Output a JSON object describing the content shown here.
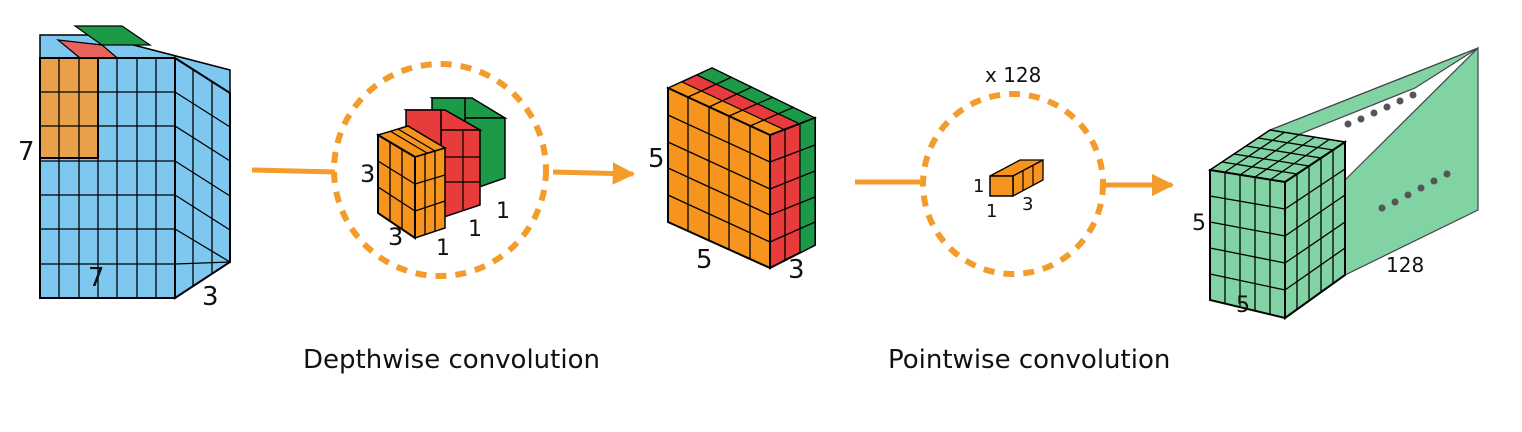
{
  "input_block": {
    "height_label": "7",
    "width_label": "7",
    "depth_label": "3"
  },
  "depthwise_kernel": {
    "height_label": "3",
    "width_label": "3",
    "depth_labels": [
      "1",
      "1",
      "1"
    ]
  },
  "intermediate_block": {
    "height_label": "5",
    "width_label": "5",
    "depth_label": "3"
  },
  "pointwise_kernel": {
    "multiplier": "x 128",
    "height_label": "1",
    "width_label": "1",
    "depth_label": "3"
  },
  "output_block": {
    "height_label": "5",
    "width_label": "5",
    "depth_label": "128"
  },
  "captions": {
    "depthwise": "Depthwise convolution",
    "pointwise": "Pointwise convolution"
  },
  "colors": {
    "blue": "#7ec8f0",
    "orange": "#f7941d",
    "red": "#e83b3b",
    "green": "#1c9a48",
    "mint": "#82d3a4",
    "dashed_circle": "#f39c2b",
    "arrow": "#f39c2b"
  }
}
